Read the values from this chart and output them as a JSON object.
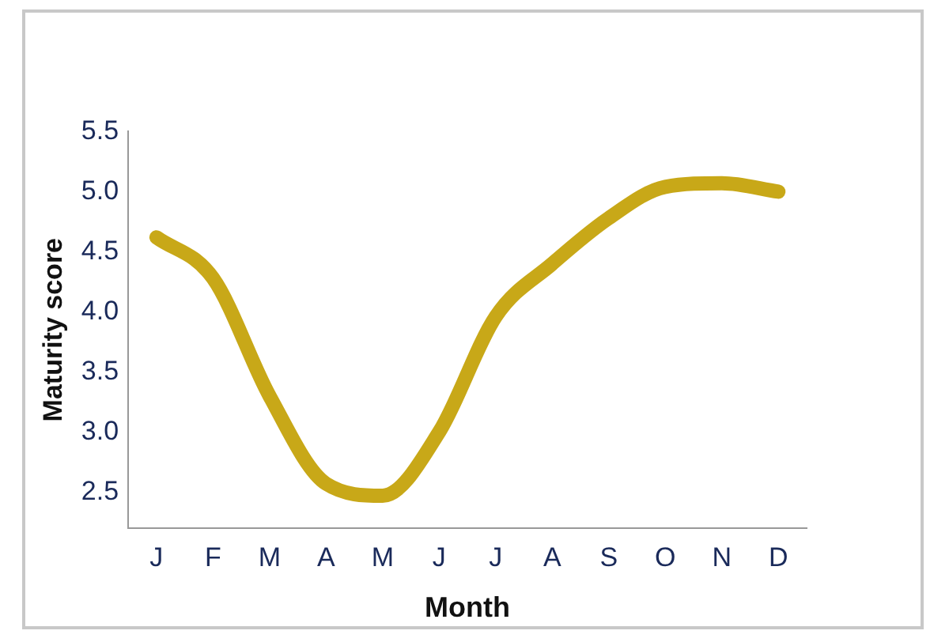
{
  "chart_data": {
    "type": "line",
    "xlabel": "Month",
    "ylabel": "Maturity score",
    "categories": [
      "J",
      "F",
      "M",
      "A",
      "M",
      "J",
      "J",
      "A",
      "S",
      "O",
      "N",
      "D"
    ],
    "series": [
      {
        "values": [
          4.62,
          4.28,
          3.3,
          2.57,
          2.47,
          3.0,
          3.96,
          4.4,
          4.78,
          5.04,
          5.07,
          5.0
        ],
        "color": "#c8a818"
      }
    ],
    "ylim": [
      2.2,
      5.5
    ],
    "yticks": [
      2.5,
      {
        "value": 3,
        "label": "3.0"
      },
      3.5,
      {
        "value": 4,
        "label": "4.0"
      },
      4.5,
      {
        "value": 5,
        "label": "5.0"
      },
      5.5
    ],
    "grid": false,
    "legend": false,
    "marker": "none",
    "line_style": "solid"
  }
}
